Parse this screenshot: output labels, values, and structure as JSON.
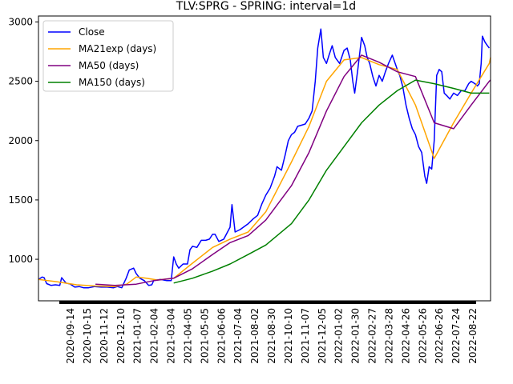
{
  "chart_data": {
    "type": "line",
    "title": "TLV:SPRG - SPRING: interval=1d",
    "xlabel": "",
    "ylabel": "",
    "x_range": [
      "2020-09-01",
      "2022-08-24"
    ],
    "ylim": [
      650,
      3050
    ],
    "y_ticks": [
      1000,
      1500,
      2000,
      2500,
      3000
    ],
    "x_tick_labels": [
      "2020-09-14",
      "2020-10-15",
      "2020-11-12",
      "2020-12-10",
      "2021-01-07",
      "2021-02-04",
      "2021-03-04",
      "2021-04-05",
      "2021-05-05",
      "2021-06-06",
      "2021-07-04",
      "2021-08-02",
      "2021-08-30",
      "2021-10-10",
      "2021-11-07",
      "2021-12-05",
      "2022-01-02",
      "2022-01-30",
      "2022-02-27",
      "2022-03-28",
      "2022-04-26",
      "2022-05-26",
      "2022-06-26",
      "2022-07-24",
      "2022-08-22"
    ],
    "legend": {
      "position": "upper-left"
    },
    "grid": false,
    "series": [
      {
        "name": "Close",
        "color": "#0000ff",
        "points": [
          [
            "2020-09-01",
            830
          ],
          [
            "2020-09-07",
            850
          ],
          [
            "2020-09-10",
            845
          ],
          [
            "2020-09-14",
            795
          ],
          [
            "2020-09-21",
            780
          ],
          [
            "2020-09-28",
            785
          ],
          [
            "2020-10-05",
            780
          ],
          [
            "2020-10-08",
            845
          ],
          [
            "2020-10-15",
            800
          ],
          [
            "2020-10-22",
            790
          ],
          [
            "2020-10-29",
            765
          ],
          [
            "2020-11-05",
            770
          ],
          [
            "2020-11-12",
            760
          ],
          [
            "2020-11-20",
            760
          ],
          [
            "2020-11-30",
            770
          ],
          [
            "2020-12-10",
            765
          ],
          [
            "2020-12-20",
            765
          ],
          [
            "2020-12-30",
            760
          ],
          [
            "2021-01-05",
            770
          ],
          [
            "2021-01-12",
            760
          ],
          [
            "2021-01-19",
            840
          ],
          [
            "2021-01-24",
            910
          ],
          [
            "2021-01-31",
            925
          ],
          [
            "2021-02-04",
            880
          ],
          [
            "2021-02-10",
            840
          ],
          [
            "2021-02-17",
            820
          ],
          [
            "2021-02-24",
            780
          ],
          [
            "2021-03-01",
            785
          ],
          [
            "2021-03-04",
            820
          ],
          [
            "2021-03-15",
            830
          ],
          [
            "2021-03-25",
            820
          ],
          [
            "2021-04-01",
            820
          ],
          [
            "2021-04-05",
            1020
          ],
          [
            "2021-04-09",
            960
          ],
          [
            "2021-04-13",
            925
          ],
          [
            "2021-04-20",
            960
          ],
          [
            "2021-04-27",
            960
          ],
          [
            "2021-05-01",
            1080
          ],
          [
            "2021-05-05",
            1110
          ],
          [
            "2021-05-12",
            1100
          ],
          [
            "2021-05-19",
            1160
          ],
          [
            "2021-05-26",
            1160
          ],
          [
            "2021-06-01",
            1170
          ],
          [
            "2021-06-06",
            1210
          ],
          [
            "2021-06-10",
            1210
          ],
          [
            "2021-06-16",
            1150
          ],
          [
            "2021-06-24",
            1170
          ],
          [
            "2021-07-04",
            1270
          ],
          [
            "2021-07-07",
            1460
          ],
          [
            "2021-07-12",
            1230
          ],
          [
            "2021-07-20",
            1250
          ],
          [
            "2021-08-02",
            1300
          ],
          [
            "2021-08-10",
            1340
          ],
          [
            "2021-08-17",
            1370
          ],
          [
            "2021-08-24",
            1470
          ],
          [
            "2021-08-30",
            1540
          ],
          [
            "2021-09-06",
            1600
          ],
          [
            "2021-09-13",
            1700
          ],
          [
            "2021-09-17",
            1780
          ],
          [
            "2021-09-24",
            1750
          ],
          [
            "2021-09-30",
            1880
          ],
          [
            "2021-10-05",
            2000
          ],
          [
            "2021-10-10",
            2050
          ],
          [
            "2021-10-15",
            2070
          ],
          [
            "2021-10-20",
            2120
          ],
          [
            "2021-10-26",
            2130
          ],
          [
            "2021-11-01",
            2140
          ],
          [
            "2021-11-07",
            2190
          ],
          [
            "2021-11-12",
            2250
          ],
          [
            "2021-11-17",
            2500
          ],
          [
            "2021-11-21",
            2780
          ],
          [
            "2021-11-26",
            2940
          ],
          [
            "2021-11-30",
            2700
          ],
          [
            "2021-12-05",
            2650
          ],
          [
            "2021-12-09",
            2720
          ],
          [
            "2021-12-14",
            2800
          ],
          [
            "2021-12-19",
            2700
          ],
          [
            "2021-12-26",
            2650
          ],
          [
            "2022-01-02",
            2760
          ],
          [
            "2022-01-07",
            2780
          ],
          [
            "2022-01-12",
            2680
          ],
          [
            "2022-01-16",
            2500
          ],
          [
            "2022-01-19",
            2400
          ],
          [
            "2022-01-24",
            2600
          ],
          [
            "2022-01-30",
            2870
          ],
          [
            "2022-02-04",
            2800
          ],
          [
            "2022-02-08",
            2700
          ],
          [
            "2022-02-12",
            2650
          ],
          [
            "2022-02-17",
            2540
          ],
          [
            "2022-02-22",
            2460
          ],
          [
            "2022-02-27",
            2550
          ],
          [
            "2022-03-04",
            2500
          ],
          [
            "2022-03-09",
            2580
          ],
          [
            "2022-03-14",
            2650
          ],
          [
            "2022-03-20",
            2720
          ],
          [
            "2022-03-28",
            2600
          ],
          [
            "2022-04-01",
            2550
          ],
          [
            "2022-04-06",
            2450
          ],
          [
            "2022-04-11",
            2300
          ],
          [
            "2022-04-16",
            2190
          ],
          [
            "2022-04-21",
            2100
          ],
          [
            "2022-04-26",
            2050
          ],
          [
            "2022-05-01",
            1950
          ],
          [
            "2022-05-06",
            1900
          ],
          [
            "2022-05-11",
            1700
          ],
          [
            "2022-05-14",
            1640
          ],
          [
            "2022-05-18",
            1780
          ],
          [
            "2022-05-22",
            1760
          ],
          [
            "2022-05-26",
            2000
          ],
          [
            "2022-05-30",
            2550
          ],
          [
            "2022-06-03",
            2600
          ],
          [
            "2022-06-07",
            2580
          ],
          [
            "2022-06-11",
            2400
          ],
          [
            "2022-06-15",
            2380
          ],
          [
            "2022-06-20",
            2350
          ],
          [
            "2022-06-26",
            2400
          ],
          [
            "2022-07-02",
            2380
          ],
          [
            "2022-07-08",
            2420
          ],
          [
            "2022-07-14",
            2420
          ],
          [
            "2022-07-20",
            2480
          ],
          [
            "2022-07-24",
            2500
          ],
          [
            "2022-07-30",
            2480
          ],
          [
            "2022-08-03",
            2460
          ],
          [
            "2022-08-06",
            2480
          ],
          [
            "2022-08-09",
            2650
          ],
          [
            "2022-08-11",
            2880
          ],
          [
            "2022-08-15",
            2830
          ],
          [
            "2022-08-19",
            2800
          ],
          [
            "2022-08-22",
            2780
          ]
        ]
      },
      {
        "name": "MA21exp (days)",
        "color": "#ffa500",
        "points": [
          [
            "2020-09-01",
            830
          ],
          [
            "2020-10-01",
            810
          ],
          [
            "2020-11-01",
            785
          ],
          [
            "2020-12-01",
            775
          ],
          [
            "2021-01-01",
            770
          ],
          [
            "2021-01-20",
            790
          ],
          [
            "2021-02-04",
            850
          ],
          [
            "2021-02-20",
            840
          ],
          [
            "2021-03-10",
            825
          ],
          [
            "2021-04-05",
            840
          ],
          [
            "2021-05-01",
            950
          ],
          [
            "2021-06-06",
            1100
          ],
          [
            "2021-07-04",
            1170
          ],
          [
            "2021-08-02",
            1230
          ],
          [
            "2021-08-30",
            1400
          ],
          [
            "2021-10-10",
            1820
          ],
          [
            "2021-11-07",
            2120
          ],
          [
            "2021-12-05",
            2500
          ],
          [
            "2022-01-02",
            2680
          ],
          [
            "2022-01-30",
            2700
          ],
          [
            "2022-02-27",
            2640
          ],
          [
            "2022-03-28",
            2600
          ],
          [
            "2022-04-26",
            2300
          ],
          [
            "2022-05-26",
            1850
          ],
          [
            "2022-06-26",
            2150
          ],
          [
            "2022-07-24",
            2400
          ],
          [
            "2022-08-22",
            2650
          ],
          [
            "2022-08-24",
            2700
          ]
        ]
      },
      {
        "name": "MA50 (days)",
        "color": "#800080",
        "points": [
          [
            "2020-12-01",
            790
          ],
          [
            "2021-01-01",
            780
          ],
          [
            "2021-02-04",
            790
          ],
          [
            "2021-03-04",
            820
          ],
          [
            "2021-04-05",
            840
          ],
          [
            "2021-05-05",
            920
          ],
          [
            "2021-06-06",
            1040
          ],
          [
            "2021-07-04",
            1140
          ],
          [
            "2021-08-02",
            1200
          ],
          [
            "2021-08-30",
            1330
          ],
          [
            "2021-10-10",
            1620
          ],
          [
            "2021-11-07",
            1900
          ],
          [
            "2021-12-05",
            2250
          ],
          [
            "2022-01-02",
            2540
          ],
          [
            "2022-01-30",
            2720
          ],
          [
            "2022-02-27",
            2660
          ],
          [
            "2022-03-28",
            2580
          ],
          [
            "2022-04-26",
            2540
          ],
          [
            "2022-05-26",
            2150
          ],
          [
            "2022-06-26",
            2100
          ],
          [
            "2022-07-24",
            2300
          ],
          [
            "2022-08-22",
            2500
          ],
          [
            "2022-08-24",
            2510
          ]
        ]
      },
      {
        "name": "MA150 (days)",
        "color": "#008000",
        "points": [
          [
            "2021-04-05",
            800
          ],
          [
            "2021-05-05",
            840
          ],
          [
            "2021-06-06",
            900
          ],
          [
            "2021-07-04",
            960
          ],
          [
            "2021-08-02",
            1040
          ],
          [
            "2021-08-30",
            1120
          ],
          [
            "2021-10-10",
            1300
          ],
          [
            "2021-11-07",
            1500
          ],
          [
            "2021-12-05",
            1750
          ],
          [
            "2022-01-02",
            1950
          ],
          [
            "2022-01-30",
            2150
          ],
          [
            "2022-02-27",
            2300
          ],
          [
            "2022-03-28",
            2420
          ],
          [
            "2022-04-26",
            2510
          ],
          [
            "2022-05-26",
            2480
          ],
          [
            "2022-06-26",
            2440
          ],
          [
            "2022-07-24",
            2400
          ],
          [
            "2022-08-22",
            2400
          ]
        ]
      }
    ]
  }
}
